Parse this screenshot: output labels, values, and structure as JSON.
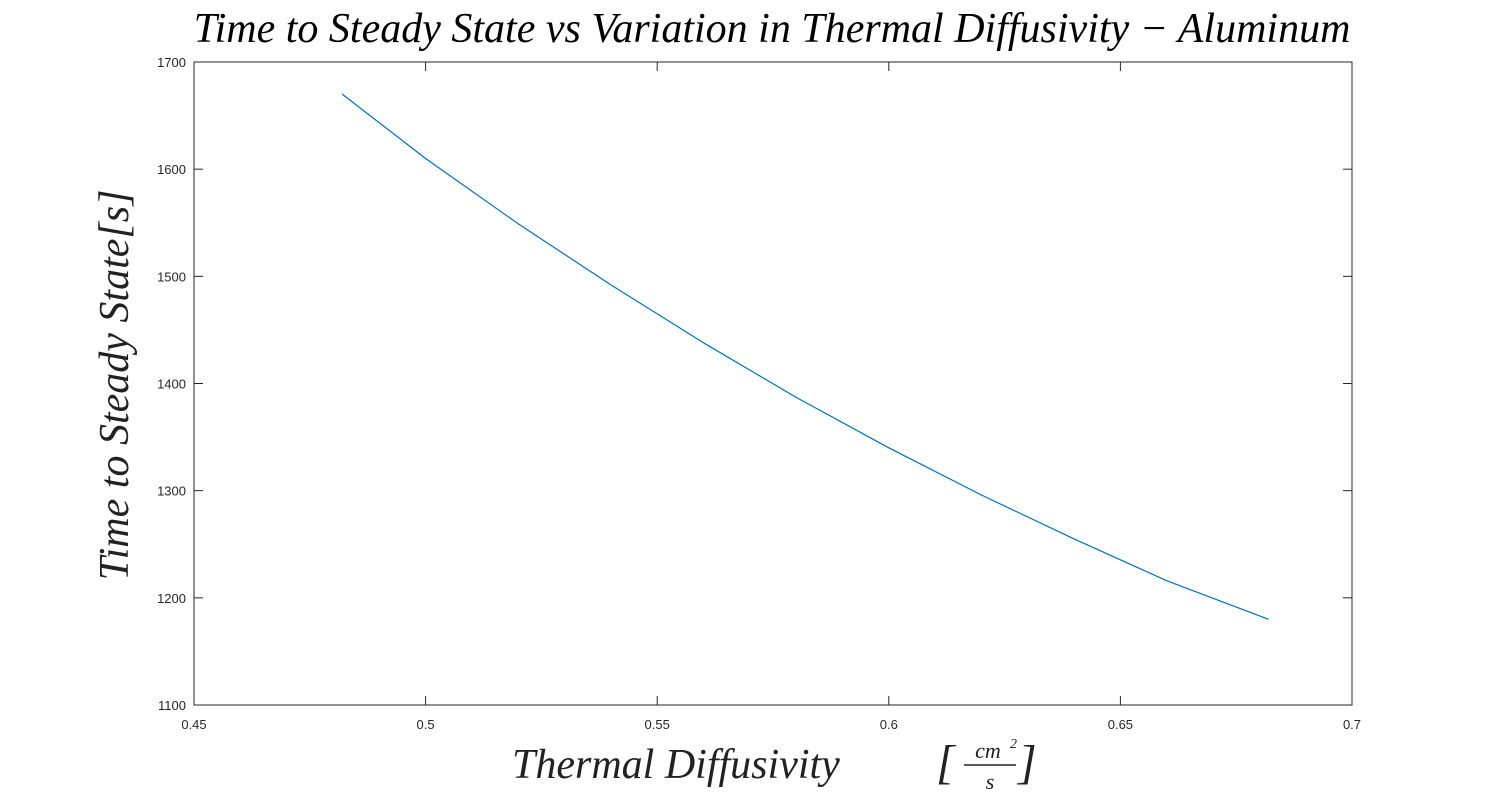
{
  "chart_data": {
    "type": "line",
    "title": "Time to Steady State vs Variation in Thermal Diffusivity − Aluminum",
    "xlabel": "Thermal Diffusivity",
    "xlabel_unit": {
      "numerator": "cm",
      "exponent": "2",
      "denominator": "s"
    },
    "ylabel": "Time to Steady State[s]",
    "xlim": [
      0.45,
      0.7
    ],
    "ylim": [
      1100,
      1700
    ],
    "xticks": [
      0.45,
      0.5,
      0.55,
      0.6,
      0.65,
      0.7
    ],
    "xtick_labels": [
      "0.45",
      "0.5",
      "0.55",
      "0.6",
      "0.65",
      "0.7"
    ],
    "yticks": [
      1100,
      1200,
      1300,
      1400,
      1500,
      1600,
      1700
    ],
    "ytick_labels": [
      "1100",
      "1200",
      "1300",
      "1400",
      "1500",
      "1600",
      "1700"
    ],
    "grid": false,
    "series": [
      {
        "color": "#0072BD",
        "x": [
          0.482,
          0.5,
          0.52,
          0.54,
          0.56,
          0.58,
          0.6,
          0.62,
          0.64,
          0.66,
          0.682
        ],
        "y": [
          1670,
          1610,
          1549,
          1492,
          1438,
          1387,
          1340,
          1296,
          1255,
          1216,
          1180
        ]
      }
    ]
  }
}
